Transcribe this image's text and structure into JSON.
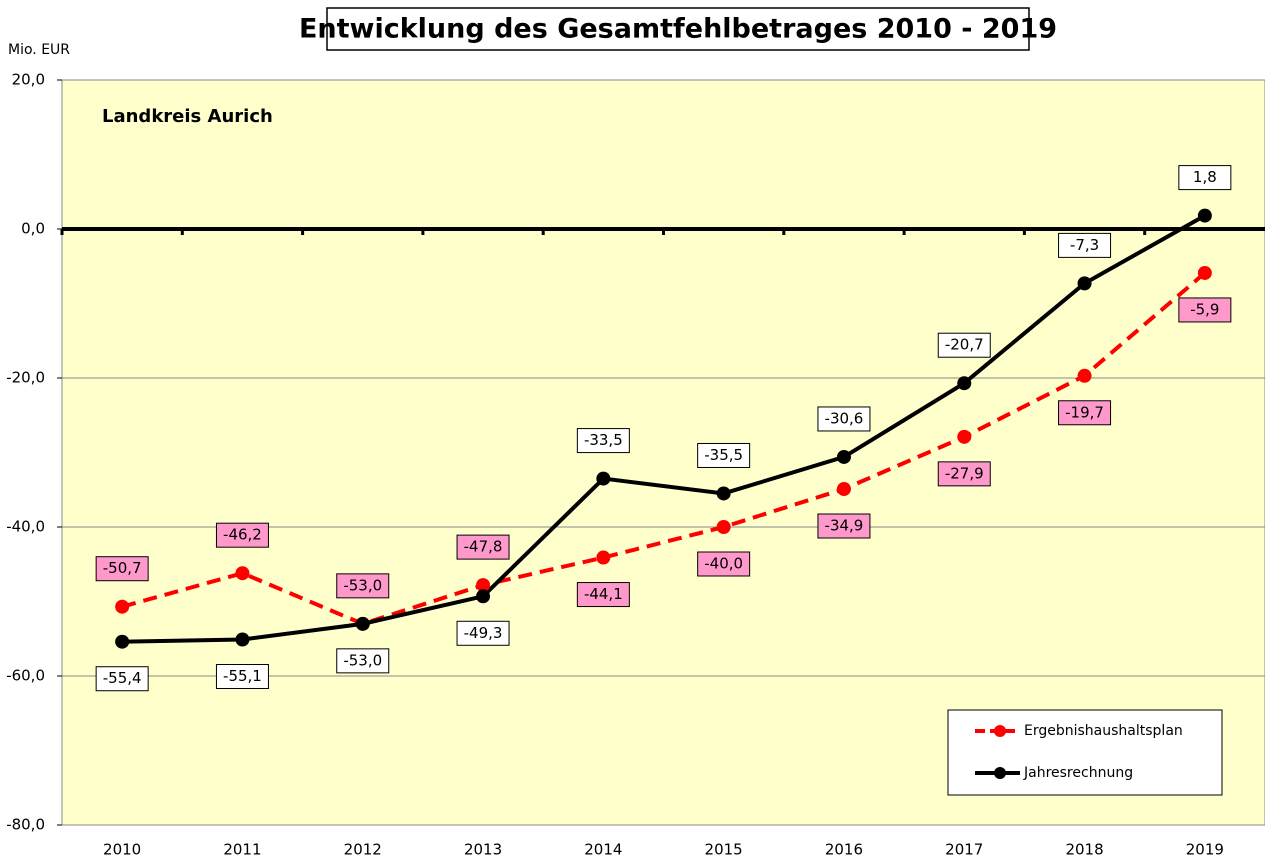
{
  "chart_data": {
    "type": "line",
    "title": "Entwicklung des Gesamtfehlbetrages 2010 - 2019",
    "y_label": "Mio. EUR",
    "annotation": "Landkreis Aurich",
    "categories": [
      "2010",
      "2011",
      "2012",
      "2013",
      "2014",
      "2015",
      "2016",
      "2017",
      "2018",
      "2019"
    ],
    "series": [
      {
        "name": "Ergebnishaushaltsplan",
        "color": "#ff0000",
        "dashed": true,
        "values": [
          -50.7,
          -46.2,
          -53.0,
          -47.8,
          -44.1,
          -40.0,
          -34.9,
          -27.9,
          -19.7,
          -5.9
        ],
        "value_labels": [
          "-50,7",
          "-46,2",
          "-53,0",
          "-47,8",
          "-44,1",
          "-40,0",
          "-34,9",
          "-27,9",
          "-19,7",
          "-5,9"
        ]
      },
      {
        "name": "Jahresrechnung",
        "color": "#000000",
        "dashed": false,
        "values": [
          -55.4,
          -55.1,
          -53.0,
          -49.3,
          -33.5,
          -35.5,
          -30.6,
          -20.7,
          -7.3,
          1.8
        ],
        "value_labels": [
          "-55,4",
          "-55,1",
          "-53,0",
          "-49,3",
          "-33,5",
          "-35,5",
          "-30,6",
          "-20,7",
          "-7,3",
          "1,8"
        ]
      }
    ],
    "ylim": [
      -80,
      20
    ],
    "yticks": [
      {
        "value": -80,
        "label": "-80,0"
      },
      {
        "value": -60,
        "label": "-60,0"
      },
      {
        "value": -40,
        "label": "-40,0"
      },
      {
        "value": -20,
        "label": "-20,0"
      },
      {
        "value": 0,
        "label": "0,0"
      },
      {
        "value": 20,
        "label": "20,0"
      }
    ],
    "grid": true,
    "legend": "lower right"
  }
}
